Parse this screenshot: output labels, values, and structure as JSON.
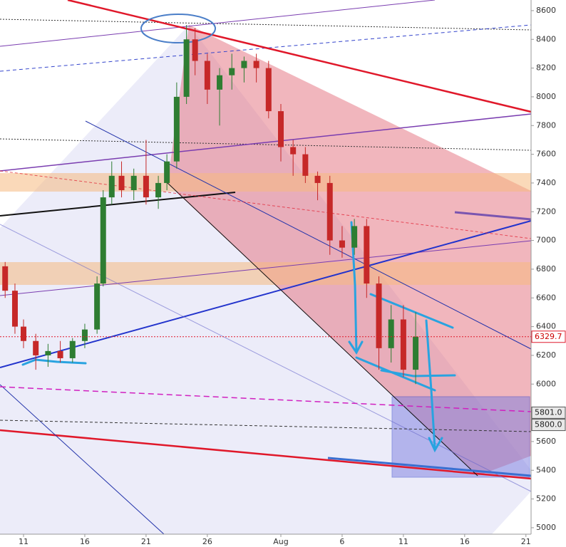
{
  "chart_data": {
    "type": "candlestick",
    "xlim": [
      -1.92,
      41.42
    ],
    "ylim": [
      4955,
      8674
    ],
    "xticks": [
      {
        "value": 0,
        "label": "11"
      },
      {
        "value": 5,
        "label": "16"
      },
      {
        "value": 10,
        "label": "21"
      },
      {
        "value": 15,
        "label": "26"
      },
      {
        "value": 21,
        "label": "Aug"
      },
      {
        "value": 26,
        "label": "6"
      },
      {
        "value": 31,
        "label": "11"
      },
      {
        "value": 36,
        "label": "16"
      },
      {
        "value": 41,
        "label": "21"
      }
    ],
    "yticks": [
      5000,
      5200,
      5400,
      5600,
      5800,
      6000,
      6200,
      6400,
      6600,
      6800,
      7000,
      7200,
      7400,
      7600,
      7800,
      8000,
      8200,
      8400,
      8600
    ],
    "up_color": "#2e7d32",
    "down_color": "#c62828",
    "price_labels": [
      6329.7,
      {
        "value": 5801,
        "label": "5801.0"
      },
      {
        "value": 5800,
        "label": "5800.0"
      }
    ],
    "candles": [
      {
        "x": -1.5,
        "open": 6820,
        "high": 6850,
        "low": 6600,
        "close": 6650
      },
      {
        "x": -0.7,
        "open": 6650,
        "high": 6700,
        "low": 6350,
        "close": 6400
      },
      {
        "x": 0,
        "open": 6400,
        "high": 6450,
        "low": 6250,
        "close": 6300
      },
      {
        "x": 1,
        "open": 6300,
        "high": 6350,
        "low": 6100,
        "close": 6200
      },
      {
        "x": 2,
        "open": 6200,
        "high": 6280,
        "low": 6120,
        "close": 6230
      },
      {
        "x": 3,
        "open": 6230,
        "high": 6300,
        "low": 6150,
        "close": 6180
      },
      {
        "x": 4,
        "open": 6180,
        "high": 6320,
        "low": 6150,
        "close": 6300
      },
      {
        "x": 5,
        "open": 6300,
        "high": 6420,
        "low": 6250,
        "close": 6380
      },
      {
        "x": 6,
        "open": 6380,
        "high": 6750,
        "low": 6350,
        "close": 6700
      },
      {
        "x": 6.5,
        "open": 6700,
        "high": 7350,
        "low": 6680,
        "close": 7300
      },
      {
        "x": 7.2,
        "open": 7300,
        "high": 7550,
        "low": 7250,
        "close": 7450
      },
      {
        "x": 8,
        "open": 7450,
        "high": 7550,
        "low": 7300,
        "close": 7350
      },
      {
        "x": 9,
        "open": 7350,
        "high": 7500,
        "low": 7280,
        "close": 7450
      },
      {
        "x": 10,
        "open": 7450,
        "high": 7700,
        "low": 7250,
        "close": 7300
      },
      {
        "x": 11,
        "open": 7300,
        "high": 7450,
        "low": 7220,
        "close": 7400
      },
      {
        "x": 11.7,
        "open": 7400,
        "high": 7600,
        "low": 7350,
        "close": 7550
      },
      {
        "x": 12.5,
        "open": 7550,
        "high": 8100,
        "low": 7500,
        "close": 8000
      },
      {
        "x": 13.3,
        "open": 8000,
        "high": 8500,
        "low": 7950,
        "close": 8400
      },
      {
        "x": 14,
        "open": 8400,
        "high": 8480,
        "low": 8150,
        "close": 8250
      },
      {
        "x": 15,
        "open": 8250,
        "high": 8300,
        "low": 7950,
        "close": 8050
      },
      {
        "x": 16,
        "open": 8050,
        "high": 8200,
        "low": 7800,
        "close": 8150
      },
      {
        "x": 17,
        "open": 8150,
        "high": 8300,
        "low": 8050,
        "close": 8200
      },
      {
        "x": 18,
        "open": 8200,
        "high": 8280,
        "low": 8100,
        "close": 8250
      },
      {
        "x": 19,
        "open": 8250,
        "high": 8300,
        "low": 8100,
        "close": 8200
      },
      {
        "x": 20,
        "open": 8200,
        "high": 8250,
        "low": 7850,
        "close": 7900
      },
      {
        "x": 21,
        "open": 7900,
        "high": 7950,
        "low": 7550,
        "close": 7650
      },
      {
        "x": 22,
        "open": 7650,
        "high": 7700,
        "low": 7450,
        "close": 7600
      },
      {
        "x": 23,
        "open": 7600,
        "high": 7650,
        "low": 7400,
        "close": 7450
      },
      {
        "x": 24,
        "open": 7450,
        "high": 7480,
        "low": 7280,
        "close": 7400
      },
      {
        "x": 25,
        "open": 7400,
        "high": 7450,
        "low": 6900,
        "close": 7000
      },
      {
        "x": 26,
        "open": 7000,
        "high": 7100,
        "low": 6880,
        "close": 6950
      },
      {
        "x": 27,
        "open": 6950,
        "high": 7150,
        "low": 6900,
        "close": 7100
      },
      {
        "x": 28,
        "open": 7100,
        "high": 7150,
        "low": 6600,
        "close": 6700
      },
      {
        "x": 29,
        "open": 6700,
        "high": 6750,
        "low": 6100,
        "close": 6250
      },
      {
        "x": 30,
        "open": 6250,
        "high": 6550,
        "low": 6150,
        "close": 6450
      },
      {
        "x": 31,
        "open": 6450,
        "high": 6550,
        "low": 6050,
        "close": 6100
      },
      {
        "x": 32,
        "open": 6100,
        "high": 6500,
        "low": 6000,
        "close": 6330
      }
    ]
  }
}
